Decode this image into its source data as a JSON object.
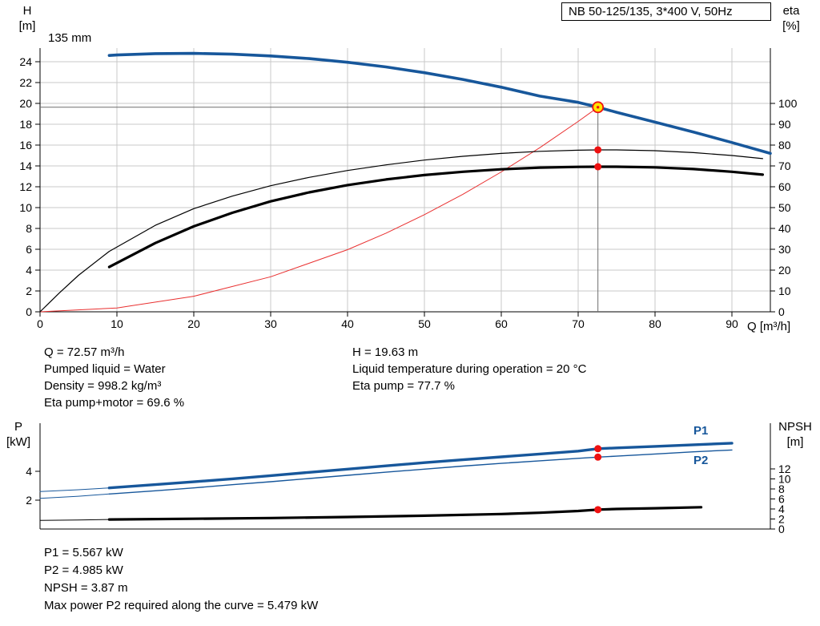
{
  "header": {
    "title": "NB 50-125/135, 3*400 V, 50Hz"
  },
  "labels": {
    "h": "H",
    "h_unit": "[m]",
    "eta": "eta",
    "eta_unit": "[%]",
    "q": "Q [m³/h]",
    "p": "P",
    "p_unit": "[kW]",
    "npsh": "NPSH",
    "npsh_unit": "[m]",
    "impeller": "135 mm",
    "p1": "P1",
    "p2": "P2"
  },
  "colors": {
    "curve_blue": "#17579b",
    "marker_red": "#ee1111",
    "duty_yellow": "#ffe400",
    "grid": "#c9c9c9",
    "duty_line": "#6e6e6e"
  },
  "info_top_left": {
    "lines": [
      "Q = 72.57 m³/h",
      "Pumped liquid = Water",
      "Density = 998.2 kg/m³",
      "Eta pump+motor = 69.6 %"
    ]
  },
  "info_top_right": {
    "lines": [
      "H = 19.63 m",
      "Liquid temperature during operation = 20 °C",
      "Eta pump = 77.7 %"
    ]
  },
  "info_bottom": {
    "lines": [
      "P1 = 5.567 kW",
      "P2 = 4.985 kW",
      "NPSH = 3.87 m",
      "Max power P2 required along the curve = 5.479 kW"
    ]
  },
  "chart_data": [
    {
      "type": "line",
      "title": "NB 50-125/135, 3*400 V, 50Hz",
      "xlabel": "Q [m³/h]",
      "ylabel_left": "H [m]",
      "ylabel_right": "eta [%]",
      "xlim": [
        0,
        95
      ],
      "ylim_left": [
        0,
        25.3
      ],
      "grid": true,
      "q_ticks": [
        0,
        10,
        20,
        30,
        40,
        50,
        60,
        70,
        80,
        90
      ],
      "h_ticks": [
        0,
        2,
        4,
        6,
        8,
        10,
        12,
        14,
        16,
        18,
        20,
        22,
        24
      ],
      "eta_ticks": [
        0,
        10,
        20,
        30,
        40,
        50,
        60,
        70,
        80,
        90,
        100
      ],
      "eta_to_h_factor": 0.2,
      "impeller_label": "135 mm",
      "duty_point": {
        "q": 72.57,
        "h": 19.63,
        "eta_pump": 77.7,
        "eta_pump_motor": 69.6
      },
      "series": [
        {
          "name": "head-135mm",
          "axis": "H",
          "color": "#17579b",
          "width": 3.6,
          "points": [
            [
              9,
              24.6
            ],
            [
              10,
              24.65
            ],
            [
              15,
              24.78
            ],
            [
              20,
              24.8
            ],
            [
              25,
              24.72
            ],
            [
              30,
              24.55
            ],
            [
              35,
              24.3
            ],
            [
              40,
              23.95
            ],
            [
              45,
              23.5
            ],
            [
              50,
              22.95
            ],
            [
              55,
              22.3
            ],
            [
              60,
              21.55
            ],
            [
              65,
              20.7
            ],
            [
              70,
              20.1
            ],
            [
              72.57,
              19.63
            ],
            [
              75,
              19.15
            ],
            [
              80,
              18.2
            ],
            [
              85,
              17.25
            ],
            [
              90,
              16.25
            ],
            [
              95,
              15.2
            ]
          ]
        },
        {
          "name": "eta-pump",
          "axis": "eta",
          "color": "#000000",
          "width": 1.2,
          "points": [
            [
              0,
              0
            ],
            [
              2.5,
              9
            ],
            [
              5,
              17.5
            ],
            [
              9,
              29
            ],
            [
              15,
              41.5
            ],
            [
              20,
              49.5
            ],
            [
              25,
              55.5
            ],
            [
              30,
              60.5
            ],
            [
              35,
              64.5
            ],
            [
              40,
              67.8
            ],
            [
              45,
              70.5
            ],
            [
              50,
              72.8
            ],
            [
              55,
              74.6
            ],
            [
              60,
              76
            ],
            [
              65,
              77
            ],
            [
              70,
              77.55
            ],
            [
              72.57,
              77.7
            ],
            [
              75,
              77.7
            ],
            [
              80,
              77.3
            ],
            [
              85,
              76.4
            ],
            [
              90,
              75
            ],
            [
              94,
              73.5
            ]
          ]
        },
        {
          "name": "eta-pump-motor",
          "axis": "eta",
          "color": "#000000",
          "width": 3.2,
          "points": [
            [
              9,
              21.5
            ],
            [
              15,
              33
            ],
            [
              20,
              41
            ],
            [
              25,
              47.5
            ],
            [
              30,
              53
            ],
            [
              35,
              57.3
            ],
            [
              40,
              60.8
            ],
            [
              45,
              63.5
            ],
            [
              50,
              65.6
            ],
            [
              55,
              67.2
            ],
            [
              60,
              68.4
            ],
            [
              65,
              69.2
            ],
            [
              70,
              69.55
            ],
            [
              72.57,
              69.6
            ],
            [
              75,
              69.6
            ],
            [
              80,
              69.3
            ],
            [
              85,
              68.5
            ],
            [
              90,
              67.2
            ],
            [
              94,
              65.8
            ]
          ]
        },
        {
          "name": "system-curve",
          "axis": "H",
          "color": "#e93030",
          "width": 1,
          "points": [
            [
              0,
              0
            ],
            [
              10,
              0.37
            ],
            [
              20,
              1.49
            ],
            [
              30,
              3.36
            ],
            [
              40,
              5.96
            ],
            [
              45,
              7.55
            ],
            [
              50,
              9.32
            ],
            [
              55,
              11.28
            ],
            [
              60,
              13.42
            ],
            [
              65,
              15.75
            ],
            [
              70,
              18.27
            ],
            [
              72.57,
              19.63
            ]
          ]
        }
      ]
    },
    {
      "type": "line",
      "ylabel_left": "P [kW]",
      "ylabel_right": "NPSH [m]",
      "xlim": [
        0,
        95
      ],
      "grid": false,
      "p_ticks": [
        2,
        4
      ],
      "npsh_ticks": [
        0,
        2,
        4,
        6,
        8,
        10,
        12
      ],
      "duty_point": {
        "q": 72.57,
        "p1": 5.567,
        "p2": 4.985,
        "npsh": 3.87
      },
      "series": [
        {
          "name": "P1",
          "axis": "P",
          "color": "#17579b",
          "width": 3.4,
          "thin": [
            [
              0,
              2.6
            ],
            [
              5,
              2.72
            ],
            [
              9,
              2.85
            ]
          ],
          "points": [
            [
              9,
              2.85
            ],
            [
              15,
              3.08
            ],
            [
              20,
              3.27
            ],
            [
              25,
              3.48
            ],
            [
              30,
              3.7
            ],
            [
              35,
              3.93
            ],
            [
              40,
              4.15
            ],
            [
              45,
              4.38
            ],
            [
              50,
              4.6
            ],
            [
              55,
              4.8
            ],
            [
              60,
              5.0
            ],
            [
              65,
              5.2
            ],
            [
              70,
              5.4
            ],
            [
              72.57,
              5.567
            ],
            [
              75,
              5.62
            ],
            [
              80,
              5.73
            ],
            [
              85,
              5.84
            ],
            [
              90,
              5.95
            ]
          ]
        },
        {
          "name": "P2",
          "axis": "P",
          "color": "#17579b",
          "width": 1.4,
          "thin": [
            [
              0,
              2.12
            ],
            [
              5,
              2.27
            ],
            [
              9,
              2.43
            ]
          ],
          "points": [
            [
              9,
              2.43
            ],
            [
              15,
              2.65
            ],
            [
              20,
              2.85
            ],
            [
              25,
              3.07
            ],
            [
              30,
              3.28
            ],
            [
              35,
              3.5
            ],
            [
              40,
              3.72
            ],
            [
              45,
              3.94
            ],
            [
              50,
              4.15
            ],
            [
              55,
              4.36
            ],
            [
              60,
              4.55
            ],
            [
              65,
              4.73
            ],
            [
              70,
              4.9
            ],
            [
              72.57,
              4.985
            ],
            [
              75,
              5.05
            ],
            [
              80,
              5.2
            ],
            [
              85,
              5.35
            ],
            [
              90,
              5.48
            ]
          ]
        },
        {
          "name": "NPSH",
          "axis": "NPSH",
          "color": "#000000",
          "width": 3.2,
          "thin": [
            [
              0,
              1.72
            ],
            [
              5,
              1.8
            ],
            [
              9,
              1.9
            ]
          ],
          "points": [
            [
              9,
              1.9
            ],
            [
              20,
              2.05
            ],
            [
              30,
              2.2
            ],
            [
              40,
              2.4
            ],
            [
              50,
              2.65
            ],
            [
              60,
              3.0
            ],
            [
              65,
              3.25
            ],
            [
              70,
              3.6
            ],
            [
              72.57,
              3.87
            ],
            [
              75,
              4.0
            ],
            [
              80,
              4.15
            ],
            [
              86,
              4.35
            ]
          ]
        }
      ]
    }
  ]
}
